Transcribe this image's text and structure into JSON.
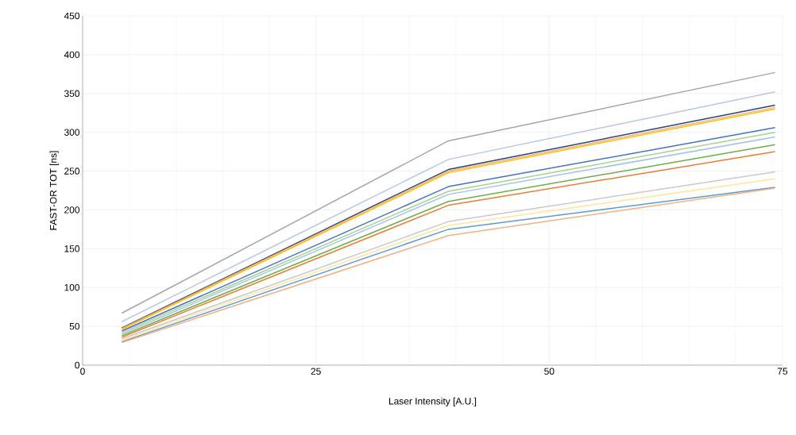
{
  "chart_data": {
    "type": "line",
    "xlabel": "Laser Intensity [A.U.]",
    "ylabel": "FAST-OR TOT [ns]",
    "x": [
      4.2,
      39.2,
      74.2
    ],
    "series": [
      {
        "color": "#a5a5a5",
        "values": [
          67,
          289,
          377
        ]
      },
      {
        "color": "#b4c7e7",
        "values": [
          56,
          265,
          352
        ]
      },
      {
        "color": "#264478",
        "values": [
          48,
          252,
          335
        ]
      },
      {
        "color": "#f4b183",
        "values": [
          47,
          250,
          332
        ]
      },
      {
        "color": "#ffc000",
        "values": [
          46,
          248,
          330
        ]
      },
      {
        "color": "#4472c4",
        "values": [
          44,
          230,
          306
        ]
      },
      {
        "color": "#a9d18e",
        "values": [
          42,
          224,
          300
        ]
      },
      {
        "color": "#9dc3e6",
        "values": [
          40,
          220,
          294
        ]
      },
      {
        "color": "#70ad47",
        "values": [
          38,
          211,
          284
        ]
      },
      {
        "color": "#ed7d31",
        "values": [
          36,
          206,
          275
        ]
      },
      {
        "color": "#c9c9c9",
        "values": [
          34,
          185,
          249
        ]
      },
      {
        "color": "#ffe699",
        "values": [
          32,
          180,
          240
        ]
      },
      {
        "color": "#5b9bd5",
        "values": [
          30,
          175,
          229
        ]
      },
      {
        "color": "#f4b183",
        "values": [
          29,
          167,
          228
        ]
      }
    ],
    "xlim": [
      0,
      75
    ],
    "xticks": [
      0,
      25,
      50,
      75
    ],
    "ylim": [
      0,
      450
    ],
    "yticks": [
      0,
      50,
      100,
      150,
      200,
      250,
      300,
      350,
      400,
      450
    ],
    "grid": true,
    "marker": "none",
    "line_style": "solid"
  }
}
